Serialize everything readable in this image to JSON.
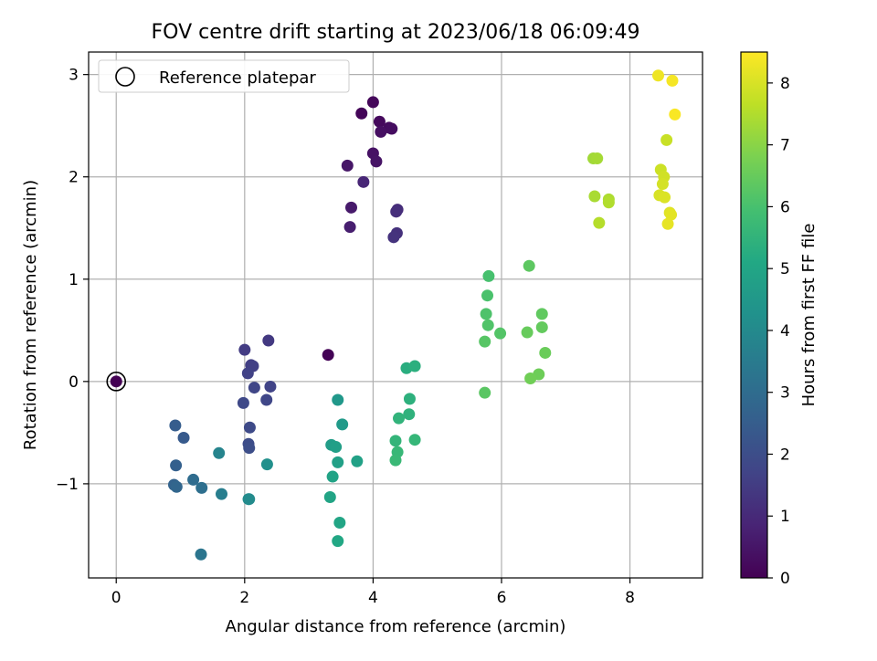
{
  "chart_data": {
    "type": "scatter",
    "title": "FOV centre drift starting at 2023/06/18 06:09:49",
    "xlabel": "Angular distance from reference (arcmin)",
    "ylabel": "Rotation from reference (arcmin)",
    "xlim": [
      -0.43,
      9.13
    ],
    "ylim": [
      -1.92,
      3.22
    ],
    "xticks": [
      0,
      2,
      4,
      6,
      8
    ],
    "yticks": [
      -1,
      0,
      1,
      2,
      3
    ],
    "xtick_labels": [
      "0",
      "2",
      "4",
      "6",
      "8"
    ],
    "ytick_labels": [
      "−1",
      "0",
      "1",
      "2",
      "3"
    ],
    "grid": true,
    "legend": {
      "position": "top-left",
      "label": "Reference platepar"
    },
    "reference_point": {
      "x": 0,
      "y": 0
    },
    "colorbar": {
      "label": "Hours from first FF file",
      "range": [
        0,
        8.5
      ],
      "ticks": [
        0,
        1,
        2,
        3,
        4,
        5,
        6,
        7,
        8
      ],
      "tick_labels": [
        "0",
        "1",
        "2",
        "3",
        "4",
        "5",
        "6",
        "7",
        "8"
      ],
      "colormap": "viridis"
    },
    "points": [
      {
        "x": 0.0,
        "y": 0.0,
        "h": 0.0
      },
      {
        "x": 3.3,
        "y": 0.26,
        "h": 0.05
      },
      {
        "x": 3.82,
        "y": 2.62,
        "h": 0.1
      },
      {
        "x": 4.0,
        "y": 2.73,
        "h": 0.15
      },
      {
        "x": 4.1,
        "y": 2.54,
        "h": 0.2
      },
      {
        "x": 4.25,
        "y": 2.48,
        "h": 0.25
      },
      {
        "x": 4.29,
        "y": 2.47,
        "h": 0.3
      },
      {
        "x": 4.12,
        "y": 2.44,
        "h": 0.35
      },
      {
        "x": 4.0,
        "y": 2.23,
        "h": 0.4
      },
      {
        "x": 4.05,
        "y": 2.15,
        "h": 0.45
      },
      {
        "x": 3.6,
        "y": 2.11,
        "h": 0.5
      },
      {
        "x": 3.66,
        "y": 1.7,
        "h": 0.6
      },
      {
        "x": 3.64,
        "y": 1.51,
        "h": 0.7
      },
      {
        "x": 3.85,
        "y": 1.95,
        "h": 0.9
      },
      {
        "x": 4.38,
        "y": 1.68,
        "h": 1.1
      },
      {
        "x": 4.36,
        "y": 1.66,
        "h": 1.15
      },
      {
        "x": 4.37,
        "y": 1.45,
        "h": 1.2
      },
      {
        "x": 4.32,
        "y": 1.41,
        "h": 1.25
      },
      {
        "x": 2.37,
        "y": 0.4,
        "h": 1.4
      },
      {
        "x": 2.0,
        "y": 0.31,
        "h": 1.5
      },
      {
        "x": 2.1,
        "y": 0.16,
        "h": 1.55
      },
      {
        "x": 2.13,
        "y": 0.15,
        "h": 1.6
      },
      {
        "x": 2.05,
        "y": 0.08,
        "h": 1.65
      },
      {
        "x": 2.4,
        "y": -0.05,
        "h": 1.7
      },
      {
        "x": 2.15,
        "y": -0.06,
        "h": 1.75
      },
      {
        "x": 2.34,
        "y": -0.18,
        "h": 1.8
      },
      {
        "x": 1.98,
        "y": -0.21,
        "h": 1.85
      },
      {
        "x": 2.08,
        "y": -0.45,
        "h": 1.9
      },
      {
        "x": 2.06,
        "y": -0.61,
        "h": 1.95
      },
      {
        "x": 2.07,
        "y": -0.65,
        "h": 2.0
      },
      {
        "x": 1.05,
        "y": -0.55,
        "h": 2.4
      },
      {
        "x": 0.92,
        "y": -0.43,
        "h": 2.5
      },
      {
        "x": 0.93,
        "y": -0.82,
        "h": 2.6
      },
      {
        "x": 0.9,
        "y": -1.01,
        "h": 2.7
      },
      {
        "x": 0.94,
        "y": -1.03,
        "h": 2.8
      },
      {
        "x": 1.2,
        "y": -0.96,
        "h": 3.0
      },
      {
        "x": 1.33,
        "y": -1.04,
        "h": 3.1
      },
      {
        "x": 1.32,
        "y": -1.69,
        "h": 3.3
      },
      {
        "x": 1.64,
        "y": -1.1,
        "h": 3.6
      },
      {
        "x": 1.6,
        "y": -0.7,
        "h": 3.8
      },
      {
        "x": 2.07,
        "y": -1.15,
        "h": 4.0
      },
      {
        "x": 2.06,
        "y": -1.15,
        "h": 4.05
      },
      {
        "x": 2.35,
        "y": -0.81,
        "h": 4.2
      },
      {
        "x": 3.45,
        "y": -0.18,
        "h": 4.5
      },
      {
        "x": 3.52,
        "y": -0.42,
        "h": 4.6
      },
      {
        "x": 3.35,
        "y": -0.62,
        "h": 4.7
      },
      {
        "x": 3.42,
        "y": -0.64,
        "h": 4.75
      },
      {
        "x": 3.45,
        "y": -0.79,
        "h": 4.8
      },
      {
        "x": 3.75,
        "y": -0.78,
        "h": 4.85
      },
      {
        "x": 3.37,
        "y": -0.93,
        "h": 4.9
      },
      {
        "x": 3.33,
        "y": -1.13,
        "h": 4.95
      },
      {
        "x": 3.48,
        "y": -1.38,
        "h": 5.0
      },
      {
        "x": 3.45,
        "y": -1.56,
        "h": 5.05
      },
      {
        "x": 4.52,
        "y": 0.13,
        "h": 5.3
      },
      {
        "x": 4.65,
        "y": 0.15,
        "h": 5.35
      },
      {
        "x": 4.57,
        "y": -0.17,
        "h": 5.4
      },
      {
        "x": 4.56,
        "y": -0.32,
        "h": 5.45
      },
      {
        "x": 4.4,
        "y": -0.36,
        "h": 5.5
      },
      {
        "x": 4.35,
        "y": -0.58,
        "h": 5.55
      },
      {
        "x": 4.65,
        "y": -0.57,
        "h": 5.6
      },
      {
        "x": 4.38,
        "y": -0.69,
        "h": 5.65
      },
      {
        "x": 4.35,
        "y": -0.77,
        "h": 5.7
      },
      {
        "x": 5.8,
        "y": 1.03,
        "h": 6.0
      },
      {
        "x": 5.78,
        "y": 0.84,
        "h": 6.05
      },
      {
        "x": 5.76,
        "y": 0.66,
        "h": 6.1
      },
      {
        "x": 5.79,
        "y": 0.55,
        "h": 6.15
      },
      {
        "x": 5.98,
        "y": 0.47,
        "h": 6.2
      },
      {
        "x": 5.74,
        "y": 0.39,
        "h": 6.25
      },
      {
        "x": 5.74,
        "y": -0.11,
        "h": 6.3
      },
      {
        "x": 6.43,
        "y": 1.13,
        "h": 6.35
      },
      {
        "x": 6.63,
        "y": 0.66,
        "h": 6.4
      },
      {
        "x": 6.63,
        "y": 0.53,
        "h": 6.45
      },
      {
        "x": 6.4,
        "y": 0.48,
        "h": 6.5
      },
      {
        "x": 6.68,
        "y": 0.28,
        "h": 6.55
      },
      {
        "x": 6.58,
        "y": 0.07,
        "h": 6.6
      },
      {
        "x": 6.45,
        "y": 0.03,
        "h": 6.65
      },
      {
        "x": 7.43,
        "y": 2.18,
        "h": 7.3
      },
      {
        "x": 7.49,
        "y": 2.18,
        "h": 7.35
      },
      {
        "x": 7.45,
        "y": 1.81,
        "h": 7.4
      },
      {
        "x": 7.67,
        "y": 1.78,
        "h": 7.45
      },
      {
        "x": 7.67,
        "y": 1.75,
        "h": 7.5
      },
      {
        "x": 7.52,
        "y": 1.55,
        "h": 7.55
      },
      {
        "x": 8.57,
        "y": 2.36,
        "h": 7.8
      },
      {
        "x": 8.48,
        "y": 2.07,
        "h": 7.85
      },
      {
        "x": 8.53,
        "y": 2.0,
        "h": 7.9
      },
      {
        "x": 8.51,
        "y": 1.93,
        "h": 7.95
      },
      {
        "x": 8.46,
        "y": 1.82,
        "h": 8.0
      },
      {
        "x": 8.54,
        "y": 1.8,
        "h": 8.05
      },
      {
        "x": 8.62,
        "y": 1.65,
        "h": 8.1
      },
      {
        "x": 8.64,
        "y": 1.63,
        "h": 8.15
      },
      {
        "x": 8.59,
        "y": 1.54,
        "h": 8.2
      },
      {
        "x": 8.44,
        "y": 2.99,
        "h": 8.3
      },
      {
        "x": 8.66,
        "y": 2.94,
        "h": 8.4
      },
      {
        "x": 8.7,
        "y": 2.61,
        "h": 8.45
      }
    ]
  }
}
